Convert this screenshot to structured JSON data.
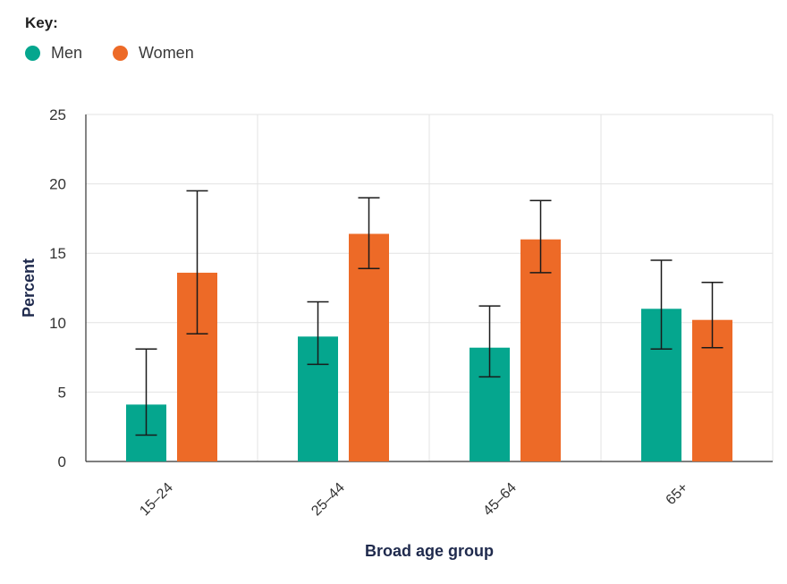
{
  "legend": {
    "title": "Key:",
    "items": [
      {
        "label": "Men",
        "color": "#05a68e"
      },
      {
        "label": "Women",
        "color": "#ed6a27"
      }
    ]
  },
  "chart_data": {
    "type": "bar",
    "categories": [
      "15–24",
      "25–44",
      "45–64",
      "65+"
    ],
    "series": [
      {
        "name": "Men",
        "color": "#05a68e",
        "values": [
          4.1,
          9.0,
          8.2,
          11.0
        ],
        "error_low": [
          1.9,
          7.0,
          6.1,
          8.1
        ],
        "error_high": [
          8.1,
          11.5,
          11.2,
          14.5
        ]
      },
      {
        "name": "Women",
        "color": "#ed6a27",
        "values": [
          13.6,
          16.4,
          16.0,
          10.2
        ],
        "error_low": [
          9.2,
          13.9,
          13.6,
          8.2
        ],
        "error_high": [
          19.5,
          19.0,
          18.8,
          12.9
        ]
      }
    ],
    "xlabel": "Broad age group",
    "ylabel": "Percent",
    "ylim": [
      0,
      25
    ],
    "yticks": [
      0,
      5,
      10,
      15,
      20,
      25
    ],
    "grid": true,
    "legend_position": "top-left"
  }
}
